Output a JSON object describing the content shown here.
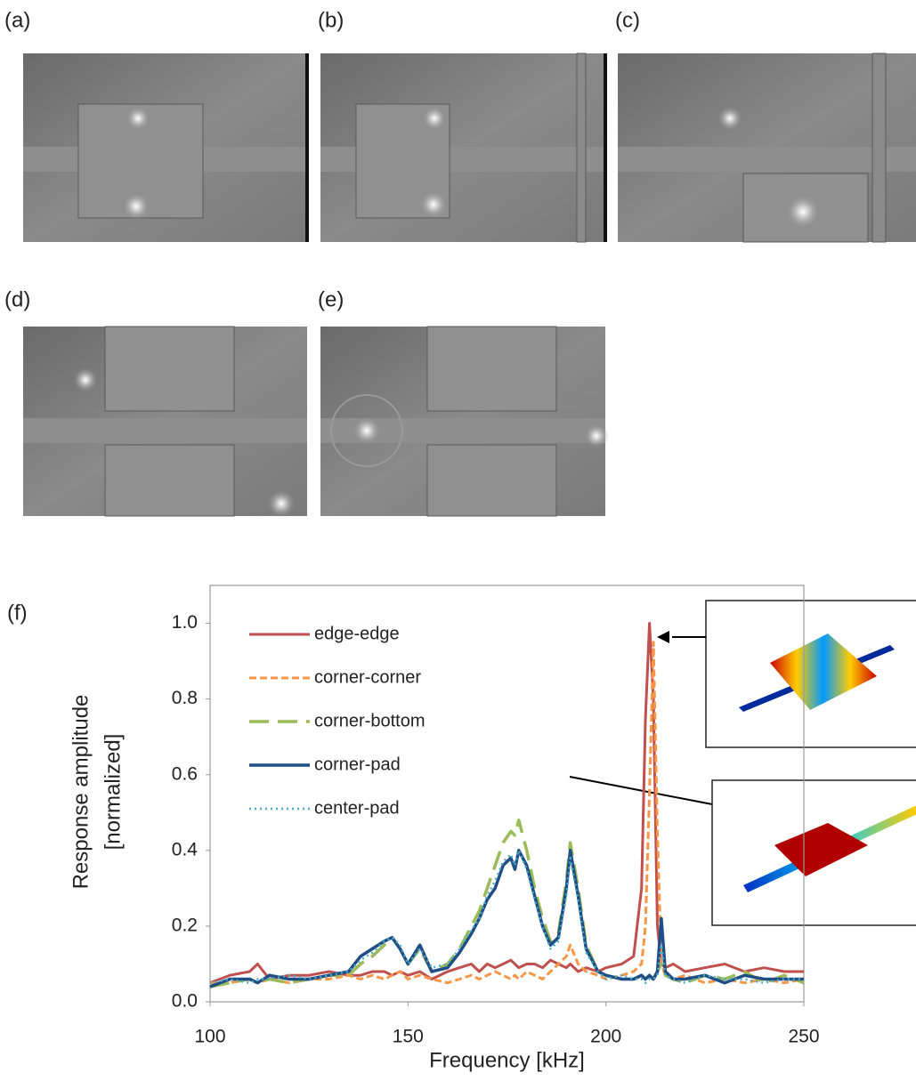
{
  "panel_labels": [
    "(a)",
    "(b)",
    "(c)",
    "(d)",
    "(e)"
  ],
  "chart_data": {
    "type": "line",
    "panel_label": "(f)",
    "xlabel": "Frequency [kHz]",
    "ylabel": [
      "Response amplitude",
      "[normalized]"
    ],
    "xlim": [
      100,
      250
    ],
    "ylim": [
      0,
      1.1
    ],
    "xticks": [
      100,
      150,
      200,
      250
    ],
    "yticks": [
      {
        "value": 0,
        "label": "0.0"
      },
      {
        "value": 0.2,
        "label": "0.2"
      },
      {
        "value": 0.4,
        "label": "0.4"
      },
      {
        "value": 0.6,
        "label": "0.6"
      },
      {
        "value": 0.8,
        "label": "0.8"
      },
      {
        "value": 1,
        "label": "1.0"
      }
    ],
    "x": [
      100,
      105,
      110,
      112,
      115,
      120,
      125,
      130,
      135,
      138,
      141,
      144,
      146,
      148,
      150,
      153,
      156,
      160,
      163,
      166,
      168,
      170,
      172,
      174,
      176,
      177,
      178,
      180,
      182,
      184,
      186,
      188,
      190,
      191,
      193,
      195,
      198,
      200,
      204,
      207,
      209,
      210,
      211,
      212,
      213,
      214,
      215,
      217,
      220,
      225,
      230,
      235,
      240,
      245,
      250
    ],
    "series": [
      {
        "name": "edge-edge",
        "color": "#c0504d",
        "dash": "solid",
        "width": 3,
        "values": [
          0.05,
          0.07,
          0.08,
          0.1,
          0.06,
          0.07,
          0.07,
          0.08,
          0.07,
          0.07,
          0.08,
          0.08,
          0.07,
          0.08,
          0.07,
          0.08,
          0.06,
          0.08,
          0.09,
          0.1,
          0.08,
          0.1,
          0.09,
          0.1,
          0.11,
          0.1,
          0.09,
          0.1,
          0.1,
          0.09,
          0.11,
          0.1,
          0.09,
          0.1,
          0.08,
          0.09,
          0.08,
          0.09,
          0.1,
          0.12,
          0.3,
          0.75,
          1.0,
          0.8,
          0.2,
          0.1,
          0.09,
          0.1,
          0.08,
          0.09,
          0.1,
          0.08,
          0.09,
          0.08,
          0.08
        ]
      },
      {
        "name": "corner-corner",
        "color": "#f79646",
        "dash": "dashed",
        "width": 3,
        "values": [
          0.05,
          0.05,
          0.06,
          0.05,
          0.06,
          0.05,
          0.06,
          0.06,
          0.07,
          0.06,
          0.07,
          0.06,
          0.07,
          0.08,
          0.06,
          0.07,
          0.06,
          0.05,
          0.06,
          0.07,
          0.06,
          0.07,
          0.08,
          0.07,
          0.06,
          0.07,
          0.06,
          0.08,
          0.07,
          0.06,
          0.08,
          0.1,
          0.12,
          0.15,
          0.1,
          0.08,
          0.07,
          0.06,
          0.07,
          0.08,
          0.1,
          0.2,
          0.55,
          0.95,
          0.45,
          0.1,
          0.07,
          0.06,
          0.07,
          0.05,
          0.06,
          0.05,
          0.06,
          0.05,
          0.06
        ]
      },
      {
        "name": "corner-bottom",
        "color": "#9bbb59",
        "dash": "longdash",
        "width": 3.5,
        "values": [
          0.04,
          0.05,
          0.06,
          0.05,
          0.06,
          0.05,
          0.06,
          0.07,
          0.07,
          0.1,
          0.12,
          0.15,
          0.17,
          0.14,
          0.1,
          0.14,
          0.08,
          0.1,
          0.14,
          0.2,
          0.24,
          0.3,
          0.36,
          0.42,
          0.45,
          0.44,
          0.48,
          0.4,
          0.3,
          0.22,
          0.16,
          0.18,
          0.32,
          0.42,
          0.3,
          0.15,
          0.08,
          0.07,
          0.06,
          0.06,
          0.07,
          0.06,
          0.07,
          0.06,
          0.08,
          0.1,
          0.07,
          0.06,
          0.05,
          0.07,
          0.06,
          0.08,
          0.05,
          0.07,
          0.05
        ]
      },
      {
        "name": "corner-pad",
        "color": "#1f4e86",
        "dash": "solid",
        "width": 3.5,
        "values": [
          0.04,
          0.06,
          0.06,
          0.05,
          0.07,
          0.06,
          0.06,
          0.07,
          0.08,
          0.12,
          0.14,
          0.16,
          0.17,
          0.14,
          0.1,
          0.15,
          0.08,
          0.09,
          0.13,
          0.18,
          0.22,
          0.27,
          0.3,
          0.36,
          0.38,
          0.35,
          0.4,
          0.36,
          0.28,
          0.2,
          0.15,
          0.17,
          0.3,
          0.4,
          0.28,
          0.14,
          0.08,
          0.07,
          0.06,
          0.06,
          0.07,
          0.06,
          0.07,
          0.06,
          0.08,
          0.22,
          0.08,
          0.06,
          0.06,
          0.07,
          0.05,
          0.07,
          0.06,
          0.06,
          0.06
        ]
      },
      {
        "name": "center-pad",
        "color": "#4bacc6",
        "dash": "dotted",
        "width": 2.5,
        "values": [
          0.05,
          0.06,
          0.05,
          0.06,
          0.06,
          0.07,
          0.06,
          0.07,
          0.08,
          0.11,
          0.13,
          0.16,
          0.17,
          0.15,
          0.1,
          0.14,
          0.09,
          0.1,
          0.14,
          0.19,
          0.22,
          0.28,
          0.32,
          0.37,
          0.39,
          0.36,
          0.4,
          0.35,
          0.27,
          0.2,
          0.14,
          0.16,
          0.28,
          0.38,
          0.27,
          0.13,
          0.08,
          0.06,
          0.07,
          0.06,
          0.06,
          0.05,
          0.06,
          0.06,
          0.07,
          0.15,
          0.07,
          0.06,
          0.05,
          0.07,
          0.06,
          0.06,
          0.05,
          0.06,
          0.06
        ]
      }
    ]
  }
}
